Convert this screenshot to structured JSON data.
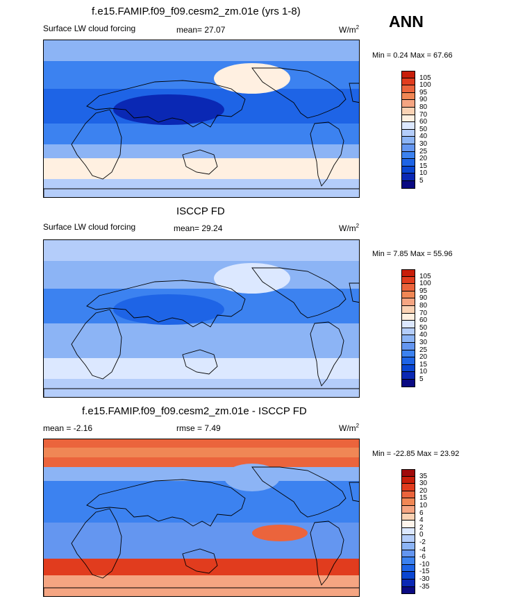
{
  "season": "ANN",
  "colors_abs": [
    "#0a0a82",
    "#0a28b4",
    "#0a46d2",
    "#1e64e6",
    "#3c82f0",
    "#6496f0",
    "#8cb4f5",
    "#b4cdfa",
    "#dce8ff",
    "#fff0e1",
    "#fad2b4",
    "#f5a582",
    "#f08755",
    "#eb643c",
    "#e13c1e",
    "#c81e0a",
    "#a00a0a"
  ],
  "colors_diff": [
    "#0a0a82",
    "#0a28b4",
    "#0a46d2",
    "#1e64e6",
    "#3c82f0",
    "#6496f0",
    "#8cb4f5",
    "#b4cdfa",
    "#dce8ff",
    "#fff5eb",
    "#fad2b4",
    "#f5a582",
    "#f08755",
    "#eb643c",
    "#e13c1e",
    "#c81e0a",
    "#a00a0a"
  ],
  "panels": [
    {
      "title": "f.e15.FAMIP.f09_f09.cesm2_zm.01e (yrs 1-8)",
      "left_label": "Surface LW cloud forcing",
      "mean_text": "mean=  27.07",
      "units": "W/m",
      "units_sup": "2",
      "minmax": "Min =   0.24 Max =  67.66",
      "levels": [
        "105",
        "100",
        "95",
        "90",
        "80",
        "70",
        "60",
        "50",
        "40",
        "30",
        "25",
        "20",
        "15",
        "10",
        "5"
      ]
    },
    {
      "title": "ISCCP FD",
      "left_label": "Surface LW cloud forcing",
      "mean_text": "mean=  29.24",
      "units": "W/m",
      "units_sup": "2",
      "minmax": "Min =   7.85 Max =  55.96",
      "levels": [
        "105",
        "100",
        "95",
        "90",
        "80",
        "70",
        "60",
        "50",
        "40",
        "30",
        "25",
        "20",
        "15",
        "10",
        "5"
      ]
    },
    {
      "title": "f.e15.FAMIP.f09_f09.cesm2_zm.01e - ISCCP FD",
      "left_label": "mean =  -2.16",
      "mean_text": "rmse =   7.49",
      "units": "W/m",
      "units_sup": "2",
      "minmax": "Min = -22.85 Max =  23.92",
      "levels": [
        "35",
        "30",
        "20",
        "15",
        "10",
        "6",
        "4",
        "2",
        "0",
        "-2",
        "-4",
        "-6",
        "-10",
        "-15",
        "-30",
        "-35"
      ]
    }
  ],
  "chart_data": [
    {
      "type": "heatmap",
      "title": "f.e15.FAMIP.f09_f09.cesm2_zm.01e (yrs 1-8)",
      "variable": "Surface LW cloud forcing",
      "units": "W/m2",
      "mean": 27.07,
      "min": 0.24,
      "max": 67.66,
      "contour_levels": [
        5,
        10,
        15,
        20,
        25,
        30,
        40,
        50,
        60,
        70,
        80,
        90,
        95,
        100,
        105
      ]
    },
    {
      "type": "heatmap",
      "title": "ISCCP FD",
      "variable": "Surface LW cloud forcing",
      "units": "W/m2",
      "mean": 29.24,
      "min": 7.85,
      "max": 55.96,
      "contour_levels": [
        5,
        10,
        15,
        20,
        25,
        30,
        40,
        50,
        60,
        70,
        80,
        90,
        95,
        100,
        105
      ]
    },
    {
      "type": "heatmap",
      "title": "f.e15.FAMIP.f09_f09.cesm2_zm.01e - ISCCP FD",
      "units": "W/m2",
      "mean": -2.16,
      "rmse": 7.49,
      "min": -22.85,
      "max": 23.92,
      "contour_levels": [
        -35,
        -30,
        -15,
        -10,
        -6,
        -4,
        -2,
        0,
        2,
        4,
        6,
        10,
        15,
        20,
        30,
        35
      ]
    }
  ]
}
